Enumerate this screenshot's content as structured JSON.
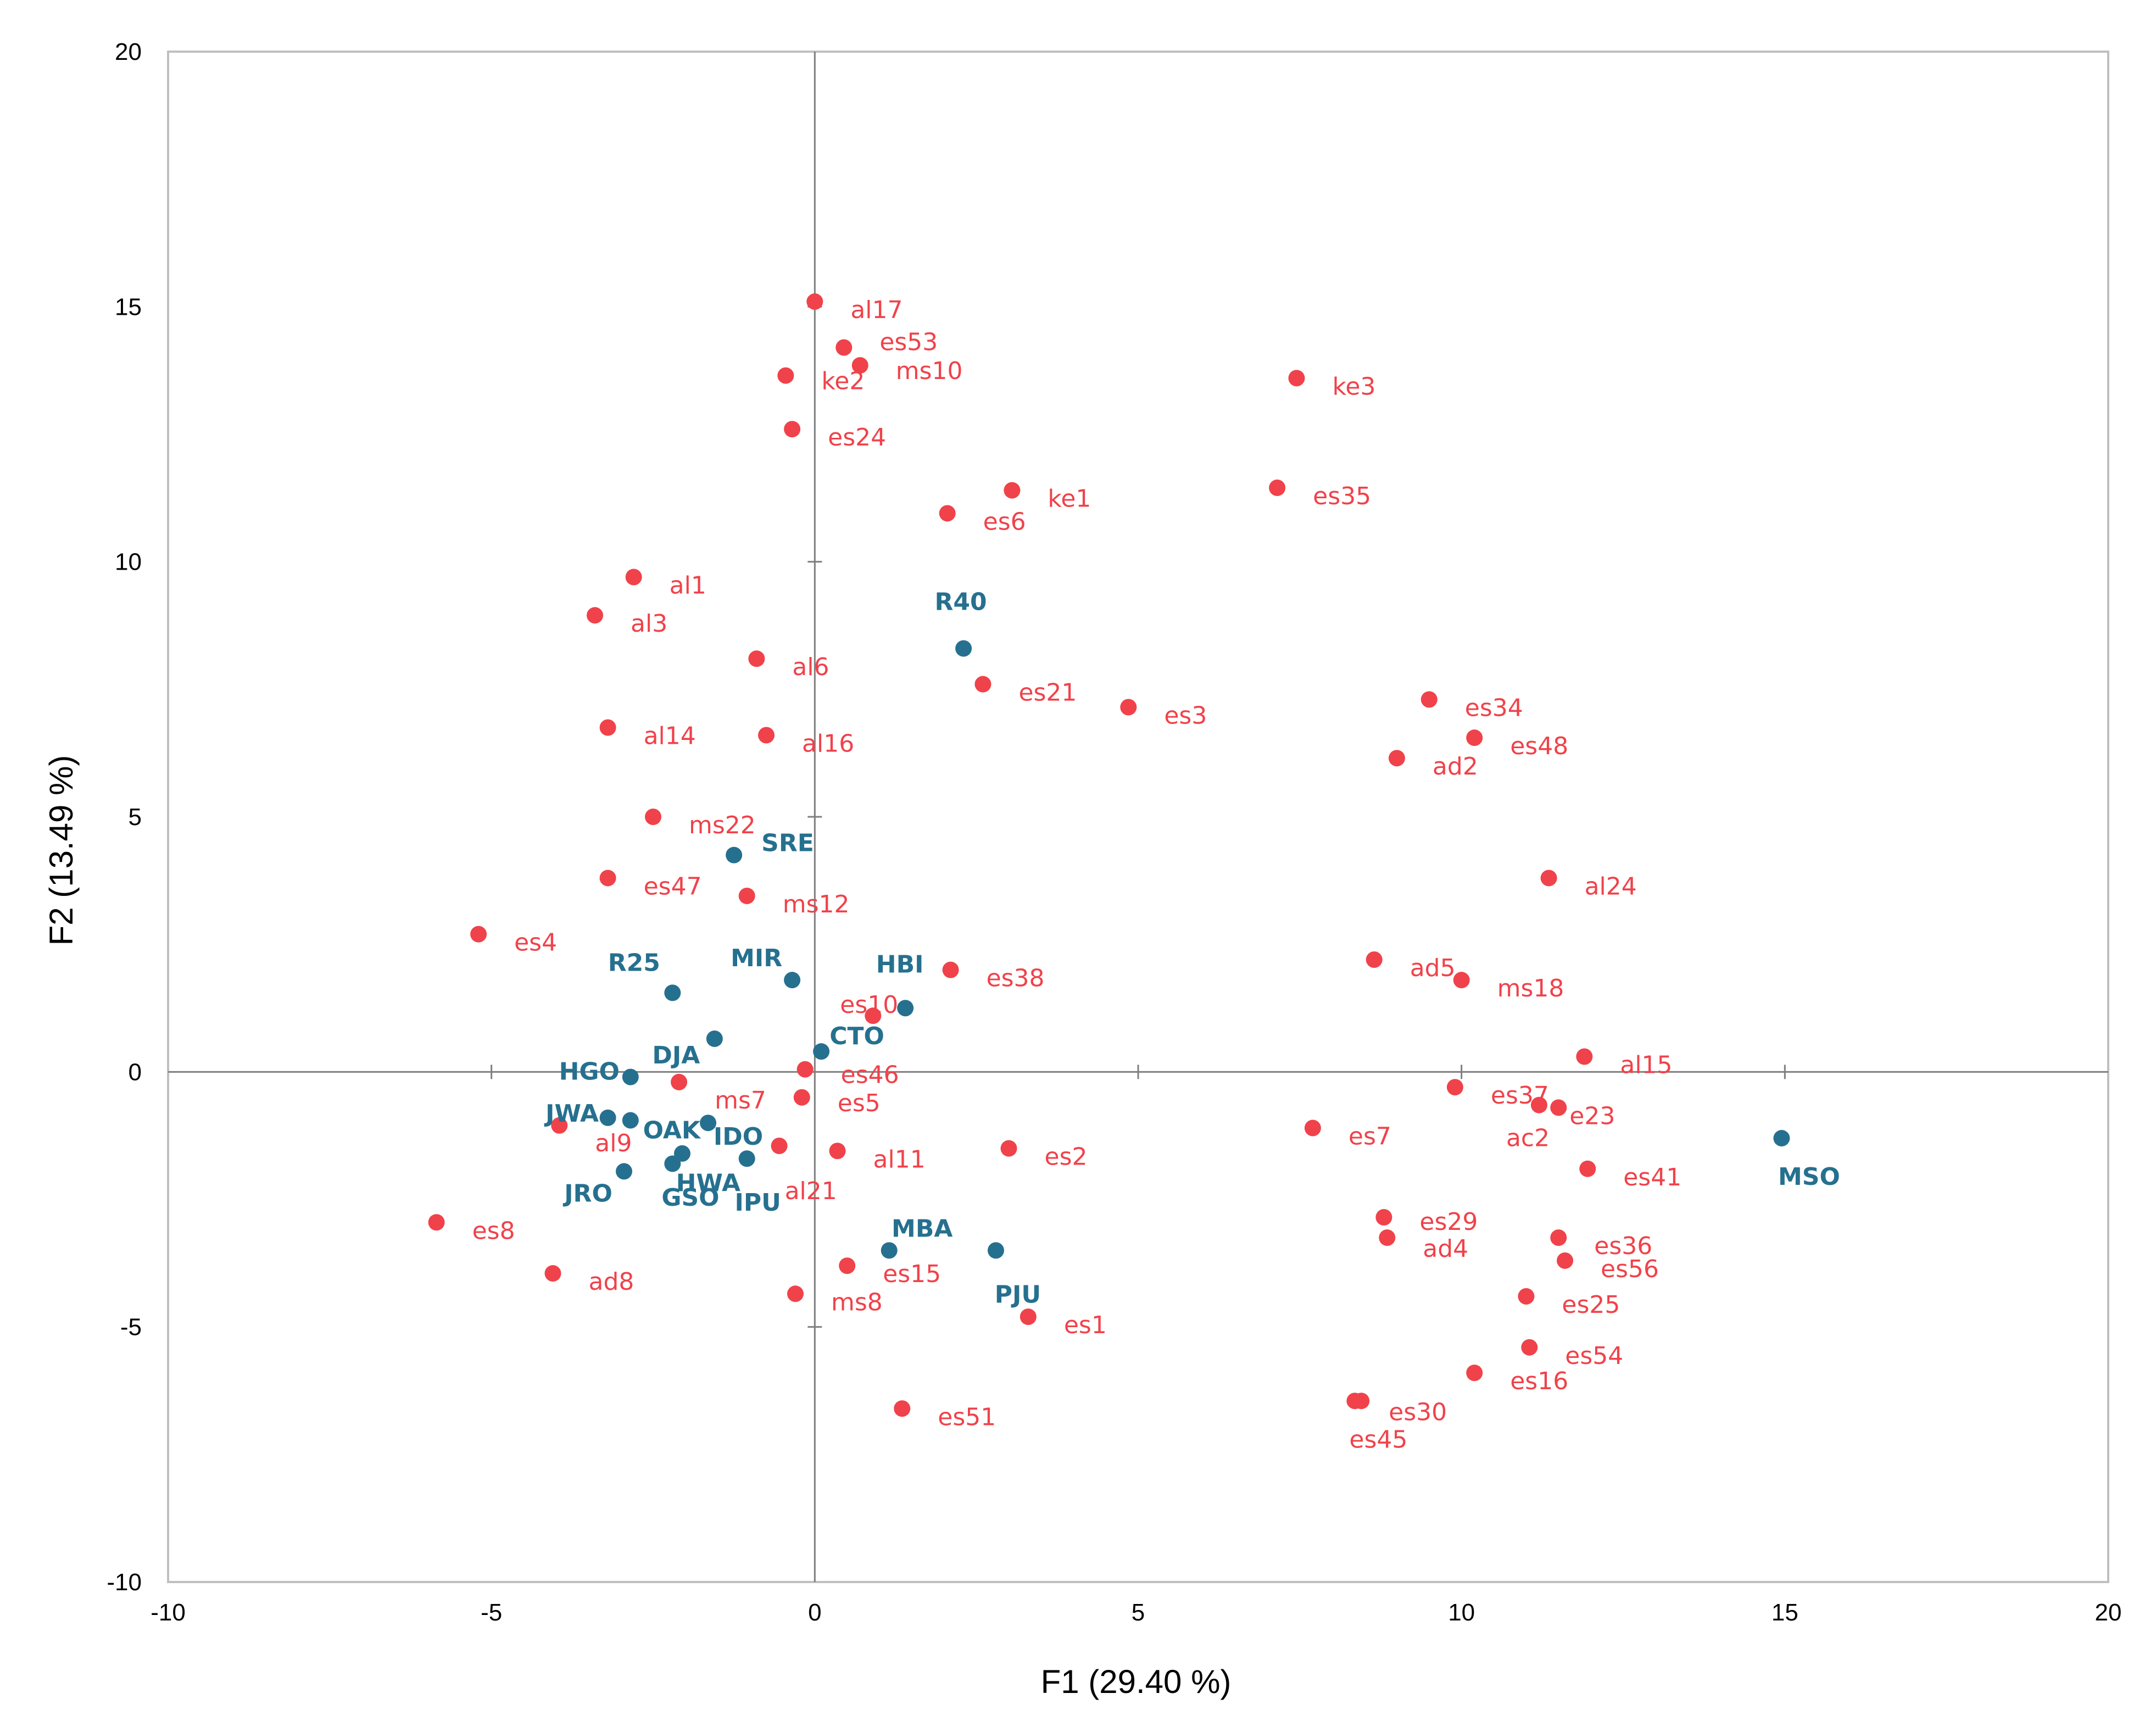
{
  "chart_data": {
    "type": "scatter",
    "title": "",
    "xlabel": "F1 (29.40 %)",
    "ylabel": "F2 (13.49 %)",
    "xlim": [
      -10,
      20
    ],
    "ylim": [
      -10,
      20
    ],
    "xticks": [
      -10,
      -5,
      0,
      5,
      10,
      15,
      20
    ],
    "yticks": [
      -10,
      -5,
      0,
      5,
      10,
      15,
      20
    ],
    "grid": false,
    "colors": {
      "samples": "#f0424a",
      "groups": "#26708f",
      "frame": "#bfbfbf",
      "zero_axes": "#7f7f7f"
    },
    "series": [
      {
        "name": "samples",
        "points": [
          {
            "label": "al17",
            "x": 0.0,
            "y": 15.1
          },
          {
            "label": "es53",
            "x": 0.45,
            "y": 14.2
          },
          {
            "label": "ms10",
            "x": 0.7,
            "y": 13.85
          },
          {
            "label": "ke2",
            "x": -0.45,
            "y": 13.65
          },
          {
            "label": "ke3",
            "x": 7.45,
            "y": 13.6
          },
          {
            "label": "es24",
            "x": -0.35,
            "y": 12.6
          },
          {
            "label": "ke1",
            "x": 3.05,
            "y": 11.4
          },
          {
            "label": "es35",
            "x": 7.15,
            "y": 11.45
          },
          {
            "label": "es6",
            "x": 2.05,
            "y": 10.95
          },
          {
            "label": "al1",
            "x": -2.8,
            "y": 9.7
          },
          {
            "label": "al3",
            "x": -3.4,
            "y": 8.95
          },
          {
            "label": "al6",
            "x": -0.9,
            "y": 8.1
          },
          {
            "label": "es21",
            "x": 2.6,
            "y": 7.6
          },
          {
            "label": "es3",
            "x": 4.85,
            "y": 7.15
          },
          {
            "label": "es34",
            "x": 9.5,
            "y": 7.3
          },
          {
            "label": "es48",
            "x": 10.2,
            "y": 6.55
          },
          {
            "label": "ad2",
            "x": 9.0,
            "y": 6.15
          },
          {
            "label": "al14",
            "x": -3.2,
            "y": 6.75
          },
          {
            "label": "al16",
            "x": -0.75,
            "y": 6.6
          },
          {
            "label": "ms22",
            "x": -2.5,
            "y": 5.0
          },
          {
            "label": "es47",
            "x": -3.2,
            "y": 3.8
          },
          {
            "label": "ms12",
            "x": -1.05,
            "y": 3.45
          },
          {
            "label": "al24",
            "x": 11.35,
            "y": 3.8
          },
          {
            "label": "es4",
            "x": -5.2,
            "y": 2.7
          },
          {
            "label": "ad5",
            "x": 8.65,
            "y": 2.2
          },
          {
            "label": "ms18",
            "x": 10.0,
            "y": 1.8
          },
          {
            "label": "es38",
            "x": 2.1,
            "y": 2.0
          },
          {
            "label": "es10",
            "x": 0.9,
            "y": 1.1
          },
          {
            "label": "es46",
            "x": -0.15,
            "y": 0.05
          },
          {
            "label": "al15",
            "x": 11.9,
            "y": 0.3
          },
          {
            "label": "ms7",
            "x": -2.1,
            "y": -0.2
          },
          {
            "label": "es5",
            "x": -0.2,
            "y": -0.5
          },
          {
            "label": "es37",
            "x": 9.9,
            "y": -0.3
          },
          {
            "label": "ac2",
            "x": 11.2,
            "y": -0.65
          },
          {
            "label": "e23",
            "x": 11.5,
            "y": -0.7
          },
          {
            "label": "al9",
            "x": -3.95,
            "y": -1.05
          },
          {
            "label": "es7",
            "x": 7.7,
            "y": -1.1
          },
          {
            "label": "al21",
            "x": -0.55,
            "y": -1.45
          },
          {
            "label": "al11",
            "x": 0.35,
            "y": -1.55
          },
          {
            "label": "es2",
            "x": 3.0,
            "y": -1.5
          },
          {
            "label": "es41",
            "x": 11.95,
            "y": -1.9
          },
          {
            "label": "es8",
            "x": -5.85,
            "y": -2.95
          },
          {
            "label": "es29",
            "x": 8.8,
            "y": -2.85
          },
          {
            "label": "ad4",
            "x": 8.85,
            "y": -3.25
          },
          {
            "label": "es36",
            "x": 11.5,
            "y": -3.25
          },
          {
            "label": "es56",
            "x": 11.6,
            "y": -3.7
          },
          {
            "label": "ad8",
            "x": -4.05,
            "y": -3.95
          },
          {
            "label": "es15",
            "x": 0.5,
            "y": -3.8
          },
          {
            "label": "ms8",
            "x": -0.3,
            "y": -4.35
          },
          {
            "label": "es25",
            "x": 11.0,
            "y": -4.4
          },
          {
            "label": "es1",
            "x": 3.3,
            "y": -4.8
          },
          {
            "label": "es54",
            "x": 11.05,
            "y": -5.4
          },
          {
            "label": "es16",
            "x": 10.2,
            "y": -5.9
          },
          {
            "label": "es30",
            "x": 8.45,
            "y": -6.45
          },
          {
            "label": "es45",
            "x": 8.35,
            "y": -6.45
          },
          {
            "label": "es51",
            "x": 1.35,
            "y": -6.6
          }
        ]
      },
      {
        "name": "groups",
        "points": [
          {
            "label": "R40",
            "x": 2.3,
            "y": 8.3
          },
          {
            "label": "SRE",
            "x": -1.25,
            "y": 4.25
          },
          {
            "label": "R25",
            "x": -2.2,
            "y": 1.55
          },
          {
            "label": "MIR",
            "x": -0.35,
            "y": 1.8
          },
          {
            "label": "HBI",
            "x": 1.4,
            "y": 1.25
          },
          {
            "label": "DJA",
            "x": -1.55,
            "y": 0.65
          },
          {
            "label": "CTO",
            "x": 0.1,
            "y": 0.4
          },
          {
            "label": "HGO",
            "x": -2.85,
            "y": -0.1
          },
          {
            "label": "JWA",
            "x": -3.2,
            "y": -0.9
          },
          {
            "label": "OAK",
            "x": -2.85,
            "y": -0.95
          },
          {
            "label": "IDO",
            "x": -1.65,
            "y": -1.0
          },
          {
            "label": "JRO",
            "x": -2.95,
            "y": -1.95
          },
          {
            "label": "HWA",
            "x": -2.2,
            "y": -1.8
          },
          {
            "label": "GSO",
            "x": -2.05,
            "y": -1.6
          },
          {
            "label": "IPU",
            "x": -1.05,
            "y": -1.7
          },
          {
            "label": "MBA",
            "x": 1.15,
            "y": -3.5
          },
          {
            "label": "PJU",
            "x": 2.8,
            "y": -3.5
          },
          {
            "label": "MSO",
            "x": 14.95,
            "y": -1.3
          }
        ]
      }
    ]
  }
}
